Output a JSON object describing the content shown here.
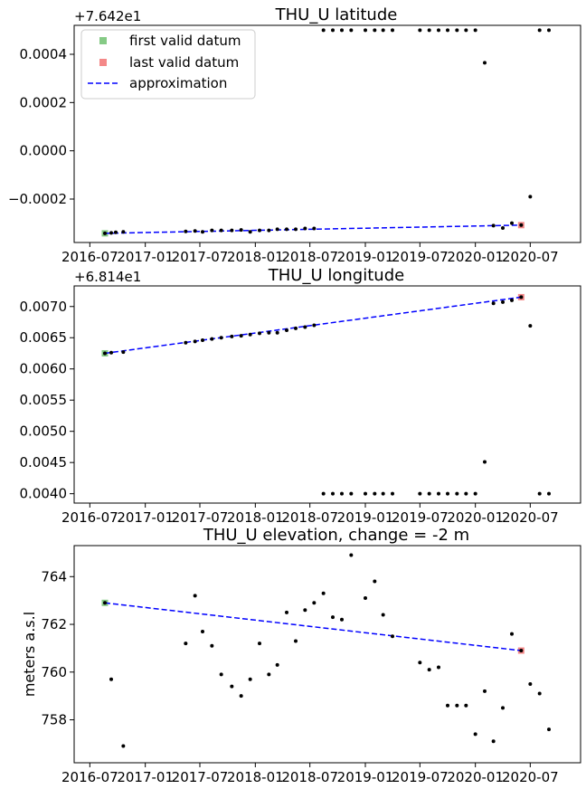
{
  "colors": {
    "first": "#5cb85c",
    "last": "#f06060",
    "approx": "#0000ff",
    "points": "#000000"
  },
  "chart_data": [
    {
      "type": "scatter",
      "title": "THU_U latitude",
      "offset_text": "+7.642e1",
      "ylabel": "",
      "xlim": [
        "2016-05-10",
        "2020-12-15"
      ],
      "ylim": [
        -0.00038,
        0.00052
      ],
      "x_ticks": [
        "2016-07-01",
        "2017-01-01",
        "2017-07-01",
        "2018-01-01",
        "2018-07-01",
        "2019-01-01",
        "2019-07-01",
        "2020-01-01",
        "2020-07-01"
      ],
      "x_tick_labels": [
        "2016-07",
        "2017-01",
        "2017-07",
        "2018-01",
        "2018-07",
        "2019-01",
        "2019-07",
        "2020-01",
        "2020-07"
      ],
      "y_ticks": [
        -0.0002,
        0.0,
        0.0002,
        0.0004
      ],
      "y_tick_labels": [
        "−0.0002",
        "0.0000",
        "0.0002",
        "0.0004"
      ],
      "legend": {
        "position": "top-left",
        "items": [
          "first valid datum",
          "last valid datum",
          "approximation"
        ]
      },
      "points": [
        [
          "2016-08-20",
          -0.000342
        ],
        [
          "2016-09-10",
          -0.00034
        ],
        [
          "2016-09-25",
          -0.000338
        ],
        [
          "2016-10-20",
          -0.000336
        ],
        [
          "2017-05-15",
          -0.000334
        ],
        [
          "2017-06-15",
          -0.000332
        ],
        [
          "2017-07-10",
          -0.000336
        ],
        [
          "2017-08-10",
          -0.00033
        ],
        [
          "2017-09-10",
          -0.00033
        ],
        [
          "2017-10-15",
          -0.00033
        ],
        [
          "2017-11-15",
          -0.000328
        ],
        [
          "2017-12-15",
          -0.000336
        ],
        [
          "2018-01-15",
          -0.00033
        ],
        [
          "2018-02-15",
          -0.00033
        ],
        [
          "2018-03-15",
          -0.000325
        ],
        [
          "2018-04-15",
          -0.000325
        ],
        [
          "2018-05-15",
          -0.000325
        ],
        [
          "2018-06-15",
          -0.000322
        ],
        [
          "2018-07-15",
          -0.000322
        ],
        [
          "2018-08-15",
          0.0005
        ],
        [
          "2018-09-15",
          0.0005
        ],
        [
          "2018-10-15",
          0.0005
        ],
        [
          "2018-11-15",
          0.0005
        ],
        [
          "2019-01-01",
          0.0005
        ],
        [
          "2019-02-01",
          0.0005
        ],
        [
          "2019-03-01",
          0.0005
        ],
        [
          "2019-04-01",
          0.0005
        ],
        [
          "2019-07-01",
          0.0005
        ],
        [
          "2019-08-01",
          0.0005
        ],
        [
          "2019-09-01",
          0.0005
        ],
        [
          "2019-10-01",
          0.0005
        ],
        [
          "2019-11-01",
          0.0005
        ],
        [
          "2019-12-01",
          0.0005
        ],
        [
          "2020-01-01",
          0.0005
        ],
        [
          "2020-02-01",
          0.000365
        ],
        [
          "2020-03-01",
          -0.00031
        ],
        [
          "2020-04-01",
          -0.00032
        ],
        [
          "2020-05-01",
          -0.0003
        ],
        [
          "2020-06-01",
          -0.000308
        ],
        [
          "2020-07-01",
          -0.00019
        ],
        [
          "2020-08-01",
          0.0005
        ],
        [
          "2020-09-01",
          0.0005
        ]
      ],
      "first_valid": [
        "2016-08-20",
        -0.000342
      ],
      "last_valid": [
        "2020-06-01",
        -0.000308
      ],
      "approximation": [
        [
          "2016-08-20",
          -0.000342
        ],
        [
          "2020-06-01",
          -0.000308
        ]
      ]
    },
    {
      "type": "scatter",
      "title": "THU_U longitude",
      "offset_text": "+6.814e1",
      "ylabel": "",
      "xlim": [
        "2016-05-10",
        "2020-12-15"
      ],
      "ylim": [
        0.00385,
        0.00733
      ],
      "x_ticks": [
        "2016-07-01",
        "2017-01-01",
        "2017-07-01",
        "2018-01-01",
        "2018-07-01",
        "2019-01-01",
        "2019-07-01",
        "2020-01-01",
        "2020-07-01"
      ],
      "x_tick_labels": [
        "2016-07",
        "2017-01",
        "2017-07",
        "2018-01",
        "2018-07",
        "2019-01",
        "2019-07",
        "2020-01",
        "2020-07"
      ],
      "y_ticks": [
        0.004,
        0.0045,
        0.005,
        0.0055,
        0.006,
        0.0065,
        0.007
      ],
      "y_tick_labels": [
        "0.0040",
        "0.0045",
        "0.0050",
        "0.0055",
        "0.0060",
        "0.0065",
        "0.0070"
      ],
      "points": [
        [
          "2016-08-20",
          0.00625
        ],
        [
          "2016-09-10",
          0.00626
        ],
        [
          "2016-10-20",
          0.00627
        ],
        [
          "2017-05-15",
          0.00642
        ],
        [
          "2017-06-15",
          0.00644
        ],
        [
          "2017-07-10",
          0.00646
        ],
        [
          "2017-08-10",
          0.00648
        ],
        [
          "2017-09-10",
          0.0065
        ],
        [
          "2017-10-15",
          0.00652
        ],
        [
          "2017-11-15",
          0.00653
        ],
        [
          "2017-12-15",
          0.00655
        ],
        [
          "2018-01-15",
          0.00657
        ],
        [
          "2018-02-15",
          0.00658
        ],
        [
          "2018-03-15",
          0.00658
        ],
        [
          "2018-04-15",
          0.00662
        ],
        [
          "2018-05-15",
          0.00665
        ],
        [
          "2018-06-15",
          0.00667
        ],
        [
          "2018-07-15",
          0.0067
        ],
        [
          "2018-08-15",
          0.004
        ],
        [
          "2018-09-15",
          0.004
        ],
        [
          "2018-10-15",
          0.004
        ],
        [
          "2018-11-15",
          0.004
        ],
        [
          "2019-01-01",
          0.004
        ],
        [
          "2019-02-01",
          0.004
        ],
        [
          "2019-03-01",
          0.004
        ],
        [
          "2019-04-01",
          0.004
        ],
        [
          "2019-07-01",
          0.004
        ],
        [
          "2019-08-01",
          0.004
        ],
        [
          "2019-09-01",
          0.004
        ],
        [
          "2019-10-01",
          0.004
        ],
        [
          "2019-11-01",
          0.004
        ],
        [
          "2019-12-01",
          0.004
        ],
        [
          "2020-01-01",
          0.004
        ],
        [
          "2020-02-01",
          0.00451
        ],
        [
          "2020-03-01",
          0.00705
        ],
        [
          "2020-04-01",
          0.00707
        ],
        [
          "2020-05-01",
          0.0071
        ],
        [
          "2020-06-01",
          0.00715
        ],
        [
          "2020-07-01",
          0.00669
        ],
        [
          "2020-08-01",
          0.004
        ],
        [
          "2020-09-01",
          0.004
        ]
      ],
      "first_valid": [
        "2016-08-20",
        0.00625
      ],
      "last_valid": [
        "2020-06-01",
        0.00715
      ],
      "approximation": [
        [
          "2016-08-20",
          0.00625
        ],
        [
          "2020-06-01",
          0.00715
        ]
      ]
    },
    {
      "type": "scatter",
      "title": "THU_U elevation, change = -2 m",
      "offset_text": "",
      "ylabel": "meters a.s.l",
      "xlim": [
        "2016-05-10",
        "2020-12-15"
      ],
      "ylim": [
        756.2,
        765.3
      ],
      "x_ticks": [
        "2016-07-01",
        "2017-01-01",
        "2017-07-01",
        "2018-01-01",
        "2018-07-01",
        "2019-01-01",
        "2019-07-01",
        "2020-01-01",
        "2020-07-01"
      ],
      "x_tick_labels": [
        "2016-07",
        "2017-01",
        "2017-07",
        "2018-01",
        "2018-07",
        "2019-01",
        "2019-07",
        "2020-01",
        "2020-07"
      ],
      "y_ticks": [
        758,
        760,
        762,
        764
      ],
      "y_tick_labels": [
        "758",
        "760",
        "762",
        "764"
      ],
      "points": [
        [
          "2016-08-20",
          762.9
        ],
        [
          "2016-09-10",
          759.7
        ],
        [
          "2016-10-20",
          756.9
        ],
        [
          "2017-05-15",
          761.2
        ],
        [
          "2017-06-15",
          763.2
        ],
        [
          "2017-07-10",
          761.7
        ],
        [
          "2017-08-10",
          761.1
        ],
        [
          "2017-09-10",
          759.9
        ],
        [
          "2017-10-15",
          759.4
        ],
        [
          "2017-11-15",
          759.0
        ],
        [
          "2017-12-15",
          759.7
        ],
        [
          "2018-01-15",
          761.2
        ],
        [
          "2018-02-15",
          759.9
        ],
        [
          "2018-03-15",
          760.3
        ],
        [
          "2018-04-15",
          762.5
        ],
        [
          "2018-05-15",
          761.3
        ],
        [
          "2018-06-15",
          762.6
        ],
        [
          "2018-07-15",
          762.9
        ],
        [
          "2018-08-15",
          763.3
        ],
        [
          "2018-09-15",
          762.3
        ],
        [
          "2018-10-15",
          762.2
        ],
        [
          "2018-11-15",
          764.9
        ],
        [
          "2019-01-01",
          763.1
        ],
        [
          "2019-02-01",
          763.8
        ],
        [
          "2019-03-01",
          762.4
        ],
        [
          "2019-04-01",
          761.5
        ],
        [
          "2019-07-01",
          760.4
        ],
        [
          "2019-08-01",
          760.1
        ],
        [
          "2019-09-01",
          760.2
        ],
        [
          "2019-10-01",
          758.6
        ],
        [
          "2019-11-01",
          758.6
        ],
        [
          "2019-12-01",
          758.6
        ],
        [
          "2020-01-01",
          757.4
        ],
        [
          "2020-02-01",
          759.2
        ],
        [
          "2020-03-01",
          757.1
        ],
        [
          "2020-04-01",
          758.5
        ],
        [
          "2020-05-01",
          761.6
        ],
        [
          "2020-06-01",
          760.9
        ],
        [
          "2020-07-01",
          759.5
        ],
        [
          "2020-08-01",
          759.1
        ],
        [
          "2020-09-01",
          757.6
        ]
      ],
      "first_valid": [
        "2016-08-20",
        762.9
      ],
      "last_valid": [
        "2020-06-01",
        760.9
      ],
      "approximation": [
        [
          "2016-08-20",
          762.9
        ],
        [
          "2020-06-01",
          760.9
        ]
      ]
    }
  ]
}
